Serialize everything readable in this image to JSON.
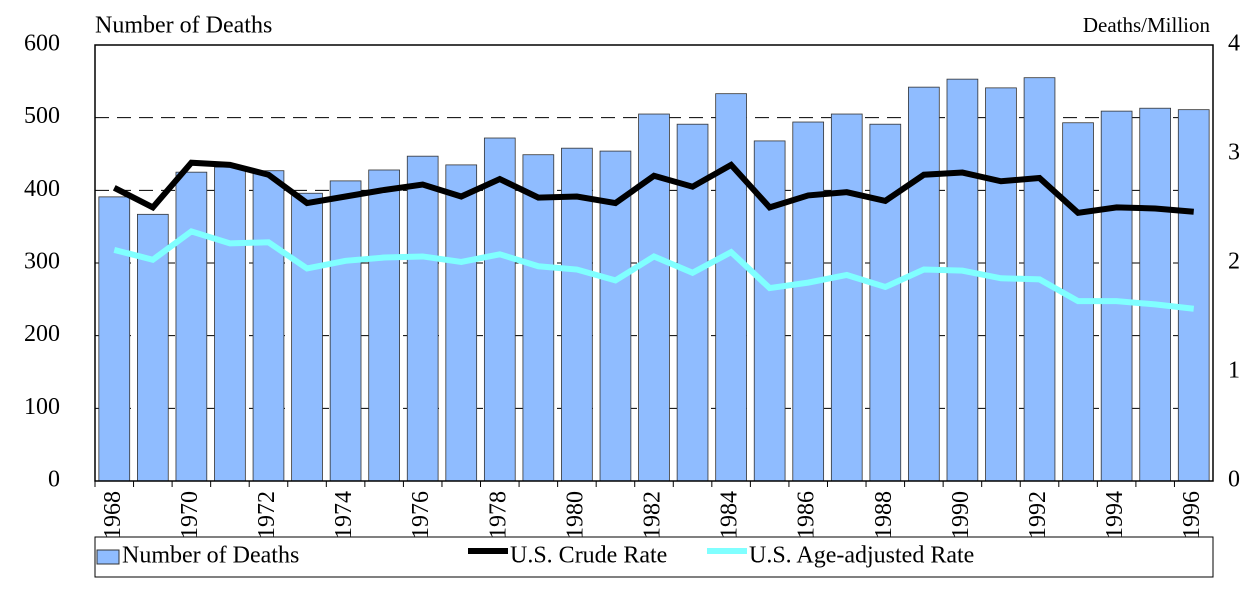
{
  "chart_data": {
    "type": "bar",
    "y_label": "Number of Deaths",
    "y2_label": "Deaths/Million",
    "categories": [
      "1968",
      null,
      "1970",
      null,
      "1972",
      null,
      "1974",
      null,
      "1976",
      null,
      "1978",
      null,
      "1980",
      null,
      "1982",
      null,
      "1984",
      null,
      "1986",
      null,
      "1988",
      null,
      "1990",
      null,
      "1992",
      null,
      "1994",
      null,
      "1996"
    ],
    "series": [
      {
        "name": "Number of Deaths",
        "type": "bar",
        "color": "#8fbcff",
        "values": [
          391,
          367,
          425,
          432,
          427,
          396,
          413,
          428,
          447,
          435,
          472,
          449,
          458,
          454,
          505,
          491,
          533,
          468,
          494,
          505,
          491,
          542,
          553,
          541,
          555,
          493,
          509,
          513,
          511
        ]
      },
      {
        "name": "U.S. Crude Rate",
        "type": "line",
        "axis": "y2",
        "color": "#000000",
        "values": [
          2.69,
          2.51,
          2.92,
          2.9,
          2.81,
          2.55,
          2.61,
          2.67,
          2.72,
          2.61,
          2.77,
          2.6,
          2.61,
          2.55,
          2.8,
          2.7,
          2.9,
          2.51,
          2.62,
          2.65,
          2.57,
          2.81,
          2.83,
          2.75,
          2.78,
          2.46,
          2.51,
          2.5,
          2.47
        ]
      },
      {
        "name": "U.S. Age-adjusted Rate",
        "type": "line",
        "axis": "y2",
        "color": "#80ffff",
        "values": [
          2.12,
          2.03,
          2.29,
          2.18,
          2.19,
          1.95,
          2.02,
          2.05,
          2.06,
          2.01,
          2.08,
          1.97,
          1.94,
          1.84,
          2.06,
          1.91,
          2.1,
          1.77,
          1.82,
          1.89,
          1.78,
          1.94,
          1.93,
          1.86,
          1.85,
          1.65,
          1.65,
          1.62,
          1.58
        ]
      }
    ],
    "ylim": [
      0,
      600
    ],
    "yticks": [
      0,
      100,
      200,
      300,
      400,
      500,
      600
    ],
    "y2lim": [
      0,
      4
    ],
    "y2ticks": [
      0,
      1,
      2,
      3,
      4
    ],
    "grid": true,
    "legend": "bottom"
  }
}
